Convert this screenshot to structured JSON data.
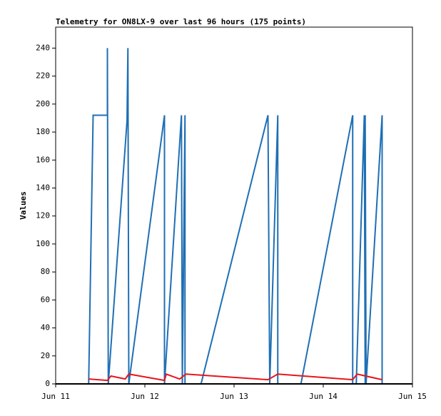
{
  "chart_data": {
    "type": "line",
    "title": "Telemetry for ON8LX-9 over last 96 hours (175 points)",
    "ylabel": "Values",
    "xlim": [
      0,
      4
    ],
    "xticks": [
      {
        "value": 0,
        "label": "Jun 11"
      },
      {
        "value": 1,
        "label": "Jun 12"
      },
      {
        "value": 2,
        "label": "Jun 13"
      },
      {
        "value": 3,
        "label": "Jun 14"
      },
      {
        "value": 4,
        "label": "Jun 15"
      }
    ],
    "ylim": [
      0,
      255
    ],
    "yticks": [
      0,
      20,
      40,
      60,
      80,
      100,
      120,
      140,
      160,
      180,
      200,
      220,
      240
    ],
    "series": [
      {
        "color": "#1f6fb4",
        "x": [
          0.37,
          0.42,
          0.58,
          0.58,
          0.59,
          0.8,
          0.81,
          0.82,
          1.22,
          1.22,
          1.41,
          1.42,
          1.45,
          1.45,
          1.63,
          2.38,
          2.4,
          2.49,
          2.49,
          2.75,
          3.33,
          3.33,
          3.37,
          3.46,
          3.47,
          3.47,
          3.48,
          3.66,
          3.66
        ],
        "values": [
          0,
          192,
          192,
          240,
          0,
          188,
          240,
          0,
          192,
          0,
          192,
          0,
          192,
          0,
          0,
          192,
          0,
          192,
          0,
          0,
          192,
          0,
          0,
          192,
          0,
          192,
          0,
          192,
          0
        ]
      },
      {
        "color": "#e8141b",
        "x": [
          0.37,
          0.58,
          0.62,
          0.78,
          0.82,
          1.22,
          1.24,
          1.39,
          1.46,
          2.38,
          2.49,
          3.33,
          3.38,
          3.66
        ],
        "values": [
          3.5,
          2.5,
          5.6,
          3.5,
          7,
          2.5,
          7,
          3.5,
          7,
          3,
          7,
          3,
          7,
          3
        ]
      }
    ]
  }
}
